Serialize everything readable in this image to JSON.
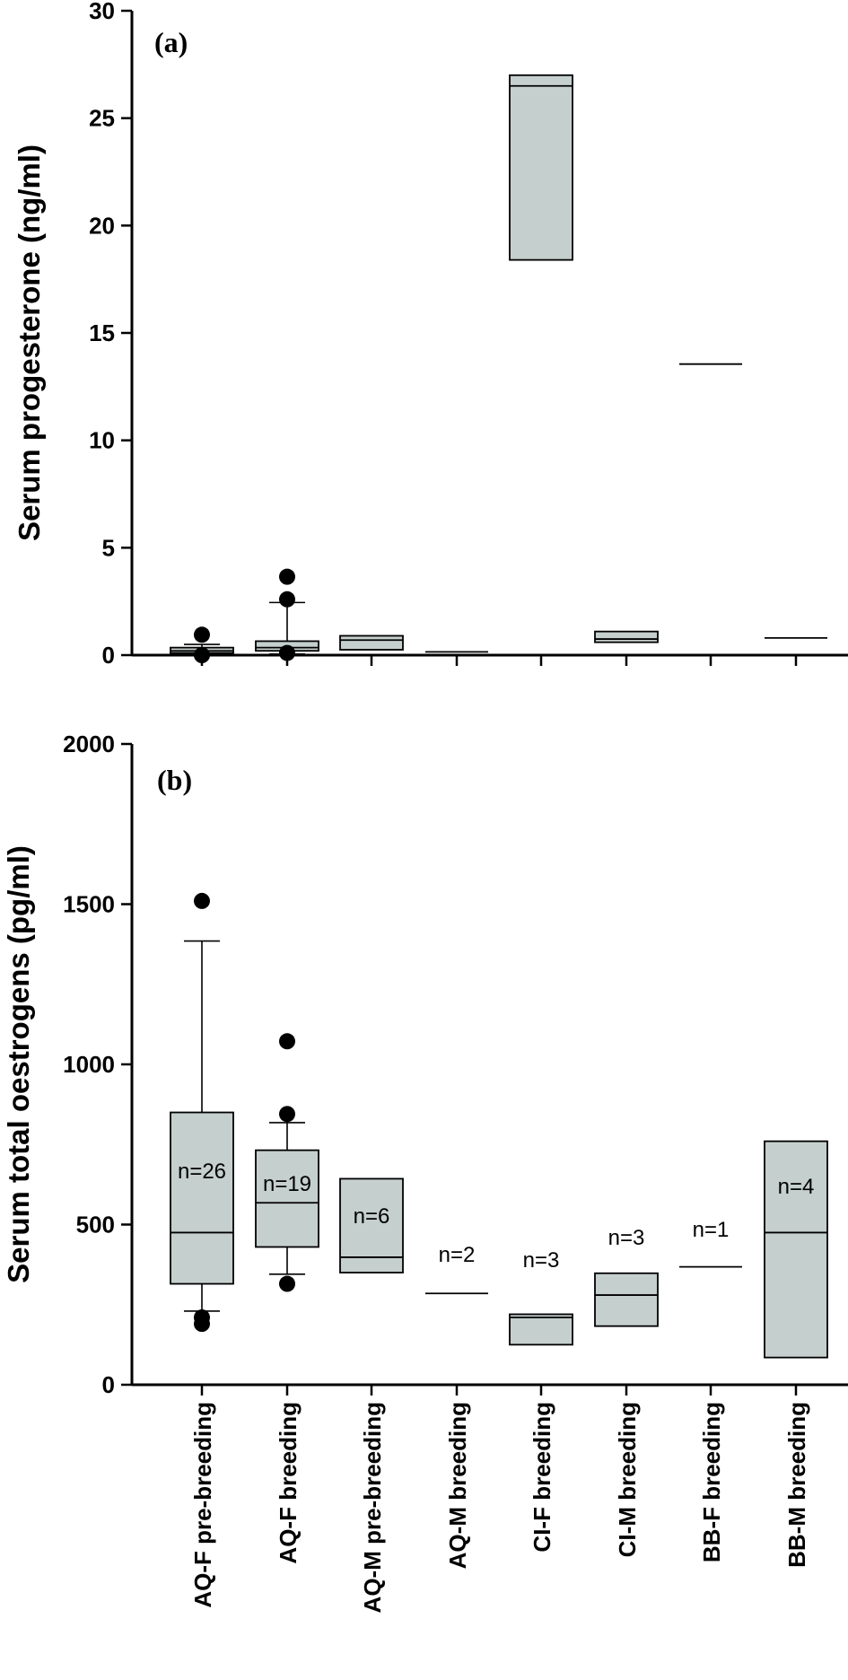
{
  "categories": [
    "AQ-F pre-breeding",
    "AQ-F breeding",
    "AQ-M pre-breeding",
    "AQ-M breeding",
    "CI-F breeding",
    "CI-M breeding",
    "BB-F breeding",
    "BB-M breeding"
  ],
  "chart_data": [
    {
      "type": "box",
      "panel": "(a)",
      "ylabel": "Serum progesterone (ng/ml)",
      "ylim": [
        0,
        30
      ],
      "yticks": [
        0,
        5,
        10,
        15,
        20,
        25,
        30
      ],
      "boxes": [
        {
          "category": "AQ-F pre-breeding",
          "q1": 0.1,
          "median": 0.2,
          "q3": 0.35,
          "whisker_low": 0.05,
          "whisker_high": 0.5,
          "outliers": [
            0.95,
            0.0
          ]
        },
        {
          "category": "AQ-F breeding",
          "q1": 0.2,
          "median": 0.35,
          "q3": 0.65,
          "whisker_low": 0.05,
          "whisker_high": 2.45,
          "outliers": [
            3.65,
            2.6,
            0.1
          ]
        },
        {
          "category": "AQ-M pre-breeding",
          "q1": 0.25,
          "median": 0.7,
          "q3": 0.9,
          "whisker_low": null,
          "whisker_high": null,
          "outliers": []
        },
        {
          "category": "AQ-M breeding",
          "q1": null,
          "median": 0.15,
          "q3": null,
          "whisker_low": null,
          "whisker_high": null,
          "outliers": []
        },
        {
          "category": "CI-F breeding",
          "q1": 18.4,
          "median": 26.5,
          "q3": 27.0,
          "whisker_low": null,
          "whisker_high": null,
          "outliers": []
        },
        {
          "category": "CI-M breeding",
          "q1": 0.6,
          "median": 0.75,
          "q3": 1.1,
          "whisker_low": null,
          "whisker_high": null,
          "outliers": []
        },
        {
          "category": "BB-F breeding",
          "q1": null,
          "median": 13.55,
          "q3": null,
          "whisker_low": null,
          "whisker_high": null,
          "outliers": []
        },
        {
          "category": "BB-M breeding",
          "q1": null,
          "median": 0.8,
          "q3": null,
          "whisker_low": null,
          "whisker_high": null,
          "outliers": []
        }
      ]
    },
    {
      "type": "box",
      "panel": "(b)",
      "ylabel": "Serum total oestrogens (pg/ml)",
      "ylim": [
        0,
        2000
      ],
      "yticks": [
        0,
        500,
        1000,
        1500,
        2000
      ],
      "boxes": [
        {
          "category": "AQ-F pre-breeding",
          "n_label": "n=26",
          "q1": 315,
          "median": 475,
          "q3": 850,
          "whisker_low": 230,
          "whisker_high": 1385,
          "outliers": [
            1510,
            210,
            190
          ]
        },
        {
          "category": "AQ-F breeding",
          "n_label": "n=19",
          "q1": 430,
          "median": 568,
          "q3": 732,
          "whisker_low": 345,
          "whisker_high": 818,
          "outliers": [
            1072,
            845,
            315
          ]
        },
        {
          "category": "AQ-M pre-breeding",
          "n_label": "n=6",
          "q1": 350,
          "median": 398,
          "q3": 643,
          "whisker_low": null,
          "whisker_high": null,
          "outliers": []
        },
        {
          "category": "AQ-M breeding",
          "n_label": "n=2",
          "q1": null,
          "median": 285,
          "q3": null,
          "whisker_low": null,
          "whisker_high": null,
          "outliers": []
        },
        {
          "category": "CI-F breeding",
          "n_label": "n=3",
          "q1": 125,
          "median": 210,
          "q3": 220,
          "whisker_low": null,
          "whisker_high": null,
          "outliers": []
        },
        {
          "category": "CI-M breeding",
          "n_label": "n=3",
          "q1": 183,
          "median": 280,
          "q3": 348,
          "whisker_low": null,
          "whisker_high": null,
          "outliers": []
        },
        {
          "category": "BB-F breeding",
          "n_label": "n=1",
          "q1": null,
          "median": 368,
          "q3": null,
          "whisker_low": null,
          "whisker_high": null,
          "outliers": []
        },
        {
          "category": "BB-M breeding",
          "n_label": "n=4",
          "q1": 85,
          "median": 475,
          "q3": 760,
          "whisker_low": null,
          "whisker_high": null,
          "outliers": []
        }
      ]
    }
  ]
}
